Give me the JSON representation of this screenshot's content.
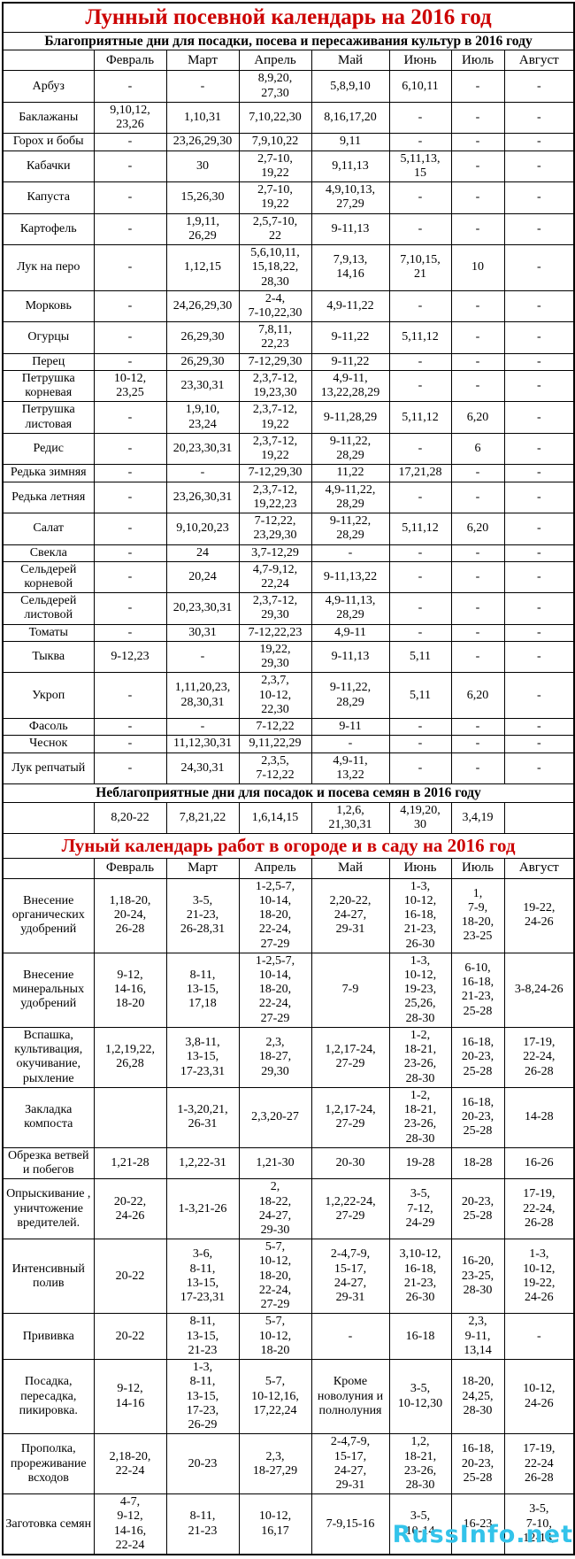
{
  "title": "Лунный посевной календарь на 2016 год",
  "months": [
    "Февраль",
    "Март",
    "Апрель",
    "Май",
    "Июнь",
    "Июль",
    "Август"
  ],
  "favorable": {
    "subtitle": "Благоприятные дни для посадки, посева и пересаживания культур в 2016 году",
    "rows": [
      {
        "name": "Арбуз",
        "values": [
          "-",
          "-",
          "8,9,20,\n27,30",
          "5,8,9,10",
          "6,10,11",
          "-",
          "-"
        ]
      },
      {
        "name": "Баклажаны",
        "values": [
          "9,10,12,\n23,26",
          "1,10,31",
          "7,10,22,30",
          "8,16,17,20",
          "-",
          "-",
          "-"
        ]
      },
      {
        "name": "Горох и бобы",
        "values": [
          "-",
          "23,26,29,30",
          "7,9,10,22",
          "9,11",
          "-",
          "-",
          "-"
        ]
      },
      {
        "name": "Кабачки",
        "values": [
          "-",
          "30",
          "2,7-10,\n19,22",
          "9,11,13",
          "5,11,13,\n15",
          "-",
          "-"
        ]
      },
      {
        "name": "Капуста",
        "values": [
          "-",
          "15,26,30",
          "2,7-10,\n19,22",
          "4,9,10,13,\n27,29",
          "-",
          "-",
          "-"
        ]
      },
      {
        "name": "Картофель",
        "values": [
          "-",
          "1,9,11,\n26,29",
          "2,5,7-10,\n22",
          "9-11,13",
          "-",
          "-",
          "-"
        ]
      },
      {
        "name": "Лук на перо",
        "values": [
          "-",
          "1,12,15",
          "5,6,10,11,\n15,18,22,\n28,30",
          "7,9,13,\n14,16",
          "7,10,15,\n21",
          "10",
          "-"
        ]
      },
      {
        "name": "Морковь",
        "values": [
          "-",
          "24,26,29,30",
          "2-4,\n7-10,22,30",
          "4,9-11,22",
          "-",
          "-",
          "-"
        ]
      },
      {
        "name": "Огурцы",
        "values": [
          "-",
          "26,29,30",
          "7,8,11,\n22,23",
          "9-11,22",
          "5,11,12",
          "-",
          "-"
        ]
      },
      {
        "name": "Перец",
        "values": [
          "-",
          "26,29,30",
          "7-12,29,30",
          "9-11,22",
          "-",
          "-",
          "-"
        ]
      },
      {
        "name": "Петрушка корневая",
        "values": [
          "10-12,\n23,25",
          "23,30,31",
          "2,3,7-12,\n19,23,30",
          "4,9-11,\n13,22,28,29",
          "-",
          "-",
          "-"
        ]
      },
      {
        "name": "Петрушка листовая",
        "values": [
          "-",
          "1,9,10,\n23,24",
          "2,3,7-12,\n19,22",
          "9-11,28,29",
          "5,11,12",
          "6,20",
          "-"
        ]
      },
      {
        "name": "Редис",
        "values": [
          "-",
          "20,23,30,31",
          "2,3,7-12,\n19,22",
          "9-11,22,\n28,29",
          "-",
          "6",
          "-"
        ]
      },
      {
        "name": "Редька зимняя",
        "values": [
          "-",
          "-",
          "7-12,29,30",
          "11,22",
          "17,21,28",
          "-",
          "-"
        ]
      },
      {
        "name": "Редька летняя",
        "values": [
          "-",
          "23,26,30,31",
          "2,3,7-12,\n19,22,23",
          "4,9-11,22,\n28,29",
          "-",
          "-",
          "-"
        ]
      },
      {
        "name": "Салат",
        "values": [
          "-",
          "9,10,20,23",
          "7-12,22,\n23,29,30",
          "9-11,22,\n28,29",
          "5,11,12",
          "6,20",
          "-"
        ]
      },
      {
        "name": "Свекла",
        "values": [
          "-",
          "24",
          "3,7-12,29",
          "-",
          "-",
          "-",
          "-"
        ]
      },
      {
        "name": "Сельдерей корневой",
        "values": [
          "-",
          "20,24",
          "4,7-9,12,\n22,24",
          "9-11,13,22",
          "-",
          "-",
          "-"
        ]
      },
      {
        "name": "Сельдерей листовой",
        "values": [
          "-",
          "20,23,30,31",
          "2,3,7-12,\n29,30",
          "4,9-11,13,\n28,29",
          "-",
          "-",
          "-"
        ]
      },
      {
        "name": "Томаты",
        "values": [
          "-",
          "30,31",
          "7-12,22,23",
          "4,9-11",
          "-",
          "-",
          "-"
        ]
      },
      {
        "name": "Тыква",
        "values": [
          "9-12,23",
          "-",
          "19,22,\n29,30",
          "9-11,13",
          "5,11",
          "-",
          "-"
        ]
      },
      {
        "name": "Укроп",
        "values": [
          "-",
          "1,11,20,23,\n28,30,31",
          "2,3,7,\n10-12,\n22,30",
          "9-11,22,\n28,29",
          "5,11",
          "6,20",
          "-"
        ]
      },
      {
        "name": "Фасоль",
        "values": [
          "-",
          "-",
          "7-12,22",
          "9-11",
          "-",
          "-",
          "-"
        ]
      },
      {
        "name": "Чеснок",
        "values": [
          "-",
          "11,12,30,31",
          "9,11,22,29",
          "-",
          "-",
          "-",
          "-"
        ]
      },
      {
        "name": "Лук репчатый",
        "values": [
          "-",
          "24,30,31",
          "2,3,5,\n7-12,22",
          "4,9-11,\n13,22",
          "-",
          "-",
          "-"
        ]
      }
    ]
  },
  "unfavorable": {
    "subtitle": "Неблагоприятные дни для посадок и посева семян в 2016 году",
    "values": [
      "8,20-22",
      "7,8,21,22",
      "1,6,14,15",
      "1,2,6,\n21,30,31",
      "4,19,20,\n30",
      "3,4,19",
      ""
    ]
  },
  "garden": {
    "title": "Луный календарь работ в огороде и в саду на 2016 год",
    "rows": [
      {
        "name": "Внесение органических удобрений",
        "values": [
          "1,18-20,\n20-24,\n26-28",
          "3-5,\n21-23,\n26-28,31",
          "1-2,5-7,\n10-14,\n18-20,\n22-24,\n27-29",
          "2,20-22,\n24-27,\n29-31",
          "1-3,\n10-12,\n16-18,\n21-23,\n26-30",
          "1,\n7-9,\n18-20,\n23-25",
          "19-22,\n24-26"
        ]
      },
      {
        "name": "Внесение минеральных удобрений",
        "values": [
          "9-12,\n14-16,\n18-20",
          "8-11,\n13-15,\n17,18",
          "1-2,5-7,\n10-14,\n18-20,\n22-24,\n27-29",
          "7-9",
          "1-3,\n10-12,\n19-23,\n25,26,\n28-30",
          "6-10,\n16-18,\n21-23,\n25-28",
          "3-8,24-26"
        ]
      },
      {
        "name": "Вспашка, культивация, окучивание, рыхление",
        "values": [
          "1,2,19,22,\n26,28",
          "3,8-11,\n13-15,\n17-23,31",
          "2,3,\n18-27,\n29,30",
          "1,2,17-24,\n27-29",
          "1-2,\n18-21,\n23-26,\n28-30",
          "16-18,\n20-23,\n25-28",
          "17-19,\n22-24,\n26-28"
        ]
      },
      {
        "name": "Закладка компоста",
        "values": [
          "",
          "1-3,20,21,\n26-31",
          "2,3,20-27",
          "1,2,17-24,\n27-29",
          "1-2,\n18-21,\n23-26,\n28-30",
          "16-18,\n20-23,\n25-28",
          "14-28"
        ]
      },
      {
        "name": "Обрезка ветвей и побегов",
        "values": [
          "1,21-28",
          "1,2,22-31",
          "1,21-30",
          "20-30",
          "19-28",
          "18-28",
          "16-26"
        ]
      },
      {
        "name": "Опрыскивание , уничтожение вредителей.",
        "values": [
          "20-22,\n24-26",
          "1-3,21-26",
          "2,\n18-22,\n24-27,\n29-30",
          "1,2,22-24,\n27-29",
          "3-5,\n7-12,\n24-29",
          "20-23,\n25-28",
          "17-19,\n22-24,\n26-28"
        ]
      },
      {
        "name": "Интенсивный полив",
        "values": [
          "20-22",
          "3-6,\n8-11,\n13-15,\n17-23,31",
          "5-7,\n10-12,\n18-20,\n22-24,\n27-29",
          "2-4,7-9,\n15-17,\n24-27,\n29-31",
          "3,10-12,\n16-18,\n21-23,\n26-30",
          "16-20,\n23-25,\n28-30",
          "1-3,\n10-12,\n19-22,\n24-26"
        ]
      },
      {
        "name": "Прививка",
        "values": [
          "20-22",
          "8-11,\n13-15,\n21-23",
          "5-7,\n10-12,\n18-20",
          "-",
          "16-18",
          "2,3,\n9-11,\n13,14",
          "-"
        ]
      },
      {
        "name": "Посадка, пересадка, пикировка.",
        "values": [
          "9-12,\n14-16",
          "1-3,\n8-11,\n13-15,\n17-23,\n26-29",
          "5-7,\n10-12,16,\n17,22,24",
          "Кроме новолуния и полнолуния",
          "3-5,\n10-12,30",
          "18-20,\n24,25,\n28-30",
          "10-12,\n24-26"
        ]
      },
      {
        "name": "Прополка, прореживание всходов",
        "values": [
          "2,18-20,\n22-24",
          "20-23",
          "2,3,\n18-27,29",
          "2-4,7-9,\n15-17,\n24-27,\n29-31",
          "1,2,\n18-21,\n23-26,\n28-30",
          "16-18,\n20-23,\n25-28",
          "17-19,\n22-24\n26-28"
        ]
      },
      {
        "name": "Заготовка семян",
        "values": [
          "4-7,\n9-12,\n14-16,\n22-24",
          "8-11,\n21-23",
          "10-12,\n16,17",
          "7-9,15-16",
          "3-5,\n10-14",
          "16-23",
          "3-5,\n7-10,\n12-14,"
        ]
      }
    ]
  },
  "watermark": "RussInfo.net"
}
